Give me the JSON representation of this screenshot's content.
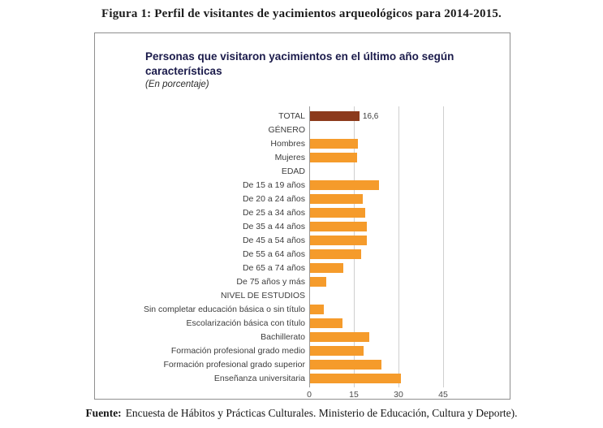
{
  "figure": {
    "caption": "Figura 1: Perfil de visitantes de yacimientos arqueológicos para 2014-2015.",
    "source_label": "Fuente:",
    "source_text": "Encuesta de Hábitos y Prácticas Culturales. Ministerio de Educación, Cultura y Deporte)."
  },
  "chart_data": {
    "type": "bar",
    "orientation": "horizontal",
    "title": "Personas que visitaron yacimientos en el último año según características",
    "subtitle": "(En porcentaje)",
    "unit": "percent",
    "xlim": [
      0,
      45
    ],
    "xticks": [
      0,
      15,
      30,
      45
    ],
    "grid": true,
    "legend": "none",
    "bar_color": "#F59B2B",
    "total_bar_color": "#8C3A1C",
    "rows": [
      {
        "label": "TOTAL",
        "value": 16.6,
        "display_value": "16,6",
        "style": "total"
      },
      {
        "label": "GÉNERO",
        "style": "header"
      },
      {
        "label": "Hombres",
        "value": 16.2
      },
      {
        "label": "Mujeres",
        "value": 15.9
      },
      {
        "label": "EDAD",
        "style": "header"
      },
      {
        "label": "De 15 a 19 años",
        "value": 23.2
      },
      {
        "label": "De 20 a 24 años",
        "value": 17.7
      },
      {
        "label": "De 25 a 34 años",
        "value": 18.5
      },
      {
        "label": "De 35 a 44 años",
        "value": 19.2
      },
      {
        "label": "De 45 a 54 años",
        "value": 19.2
      },
      {
        "label": "De 55 a 64 años",
        "value": 17.2
      },
      {
        "label": "De 65 a 74 años",
        "value": 11.3
      },
      {
        "label": "De 75 años y más",
        "value": 5.4
      },
      {
        "label": "NIVEL DE ESTUDIOS",
        "style": "header"
      },
      {
        "label": "Sin completar educación básica o sin título",
        "value": 4.5
      },
      {
        "label": "Escolarización básica con título",
        "value": 11.0
      },
      {
        "label": "Bachillerato",
        "value": 19.9
      },
      {
        "label": "Formación profesional grado medio",
        "value": 17.9
      },
      {
        "label": "Formación profesional grado superior",
        "value": 24.1
      },
      {
        "label": "Enseñanza universitaria",
        "value": 30.5
      }
    ]
  }
}
